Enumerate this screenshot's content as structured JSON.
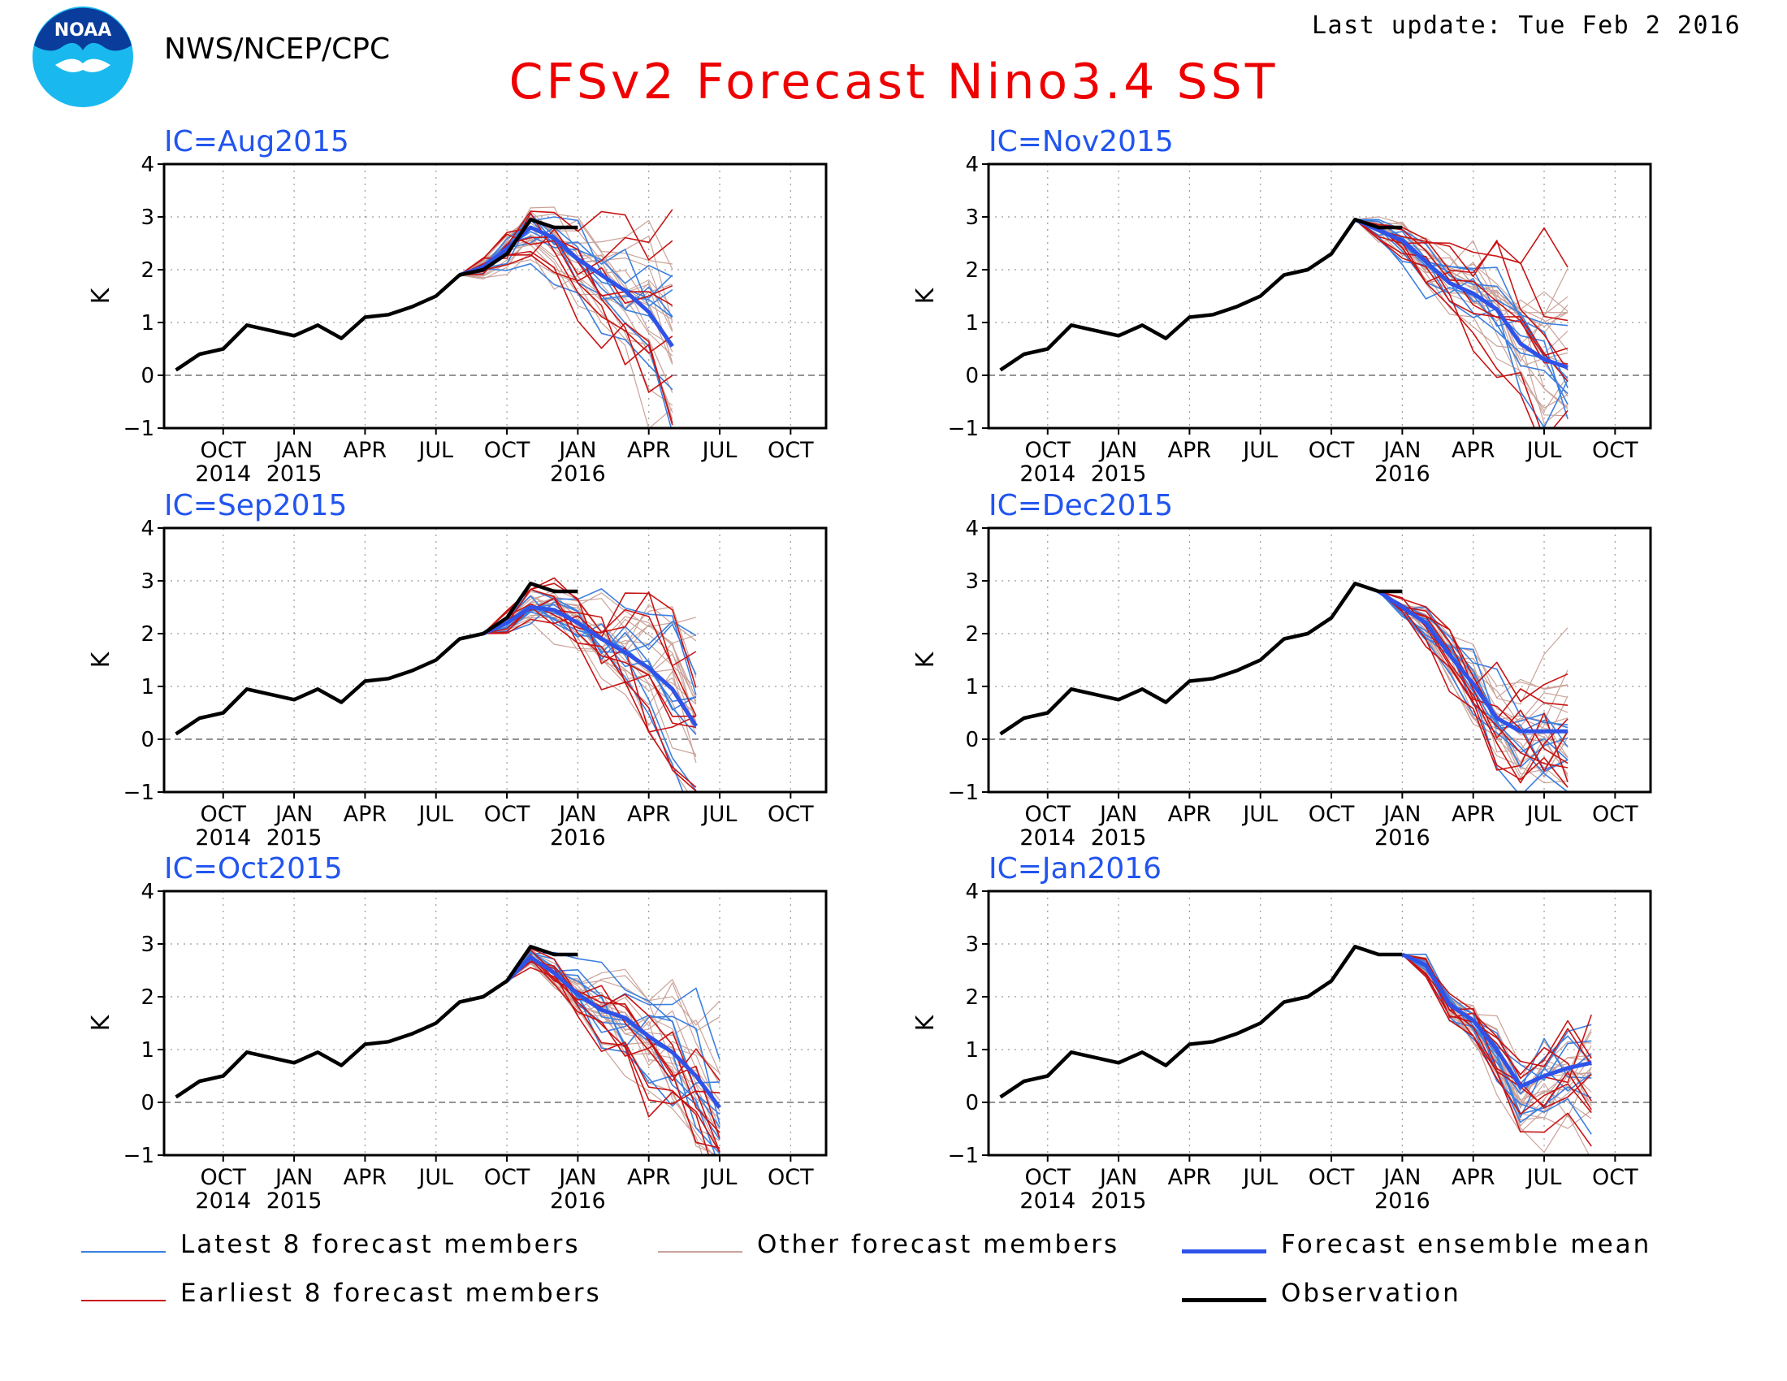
{
  "header": {
    "org": "NWS/NCEP/CPC",
    "logo_text": "NOAA",
    "last_update": "Last update: Tue Feb 2 2016",
    "title": "CFSv2 Forecast Nino3.4 SST"
  },
  "legend": [
    {
      "label": "Latest 8 forecast members",
      "color": "#3b7fe0"
    },
    {
      "label": "Other forecast members",
      "color": "#c9a39a"
    },
    {
      "label": "Forecast ensemble mean",
      "color": "#2f53e8"
    },
    {
      "label": "Earliest 8 forecast members",
      "color": "#c81414"
    },
    {
      "label": "Observation",
      "color": "#000000"
    }
  ],
  "chart_data": {
    "type": "line",
    "ylabel": "K",
    "ylim": [
      -1,
      4
    ],
    "yticks": [
      "4",
      "3",
      "2",
      "1",
      "0",
      "−1"
    ],
    "xticks": [
      {
        "month": "OCT",
        "year": "2014"
      },
      {
        "month": "JAN",
        "year": "2015"
      },
      {
        "month": "APR",
        "year": ""
      },
      {
        "month": "JUL",
        "year": ""
      },
      {
        "month": "OCT",
        "year": ""
      },
      {
        "month": "JAN",
        "year": "2016"
      },
      {
        "month": "APR",
        "year": ""
      },
      {
        "month": "JUL",
        "year": ""
      },
      {
        "month": "OCT",
        "year": ""
      }
    ],
    "x_months": [
      "Aug 2014",
      "Sep 2014",
      "Oct 2014",
      "Nov 2014",
      "Dec 2014",
      "Jan 2015",
      "Feb 2015",
      "Mar 2015",
      "Apr 2015",
      "May 2015",
      "Jun 2015",
      "Jul 2015",
      "Aug 2015",
      "Sep 2015",
      "Oct 2015",
      "Nov 2015",
      "Dec 2015",
      "Jan 2016",
      "Feb 2016",
      "Mar 2016",
      "Apr 2016",
      "May 2016",
      "Jun 2016",
      "Jul 2016",
      "Aug 2016",
      "Sep 2016",
      "Oct 2016",
      "Nov 2016"
    ],
    "observation": [
      0.1,
      0.4,
      0.5,
      0.95,
      0.85,
      0.75,
      0.95,
      0.7,
      1.1,
      1.15,
      1.3,
      1.5,
      1.9,
      2.0,
      2.3,
      2.95,
      2.8,
      2.8
    ],
    "panels": [
      {
        "ic": "IC=Aug2015",
        "start": 12,
        "mean": [
          1.9,
          2.05,
          2.4,
          2.8,
          2.6,
          2.2,
          1.9,
          1.6,
          1.2,
          0.55
        ]
      },
      {
        "ic": "IC=Sep2015",
        "start": 13,
        "mean": [
          2.0,
          2.2,
          2.5,
          2.45,
          2.2,
          1.9,
          1.65,
          1.35,
          0.95,
          0.25
        ]
      },
      {
        "ic": "IC=Oct2015",
        "start": 14,
        "mean": [
          2.3,
          2.75,
          2.45,
          2.05,
          1.75,
          1.6,
          1.25,
          0.95,
          0.5,
          -0.1
        ]
      },
      {
        "ic": "IC=Nov2015",
        "start": 15,
        "mean": [
          2.95,
          2.75,
          2.55,
          2.15,
          1.75,
          1.55,
          1.25,
          0.6,
          0.3,
          0.15
        ]
      },
      {
        "ic": "IC=Dec2015",
        "start": 16,
        "mean": [
          2.8,
          2.5,
          2.2,
          1.6,
          1.05,
          0.4,
          0.15,
          0.15,
          0.15
        ]
      },
      {
        "ic": "IC=Jan2016",
        "start": 17,
        "mean": [
          2.8,
          2.6,
          1.85,
          1.55,
          1.0,
          0.3,
          0.5,
          0.65,
          0.75
        ]
      }
    ]
  }
}
